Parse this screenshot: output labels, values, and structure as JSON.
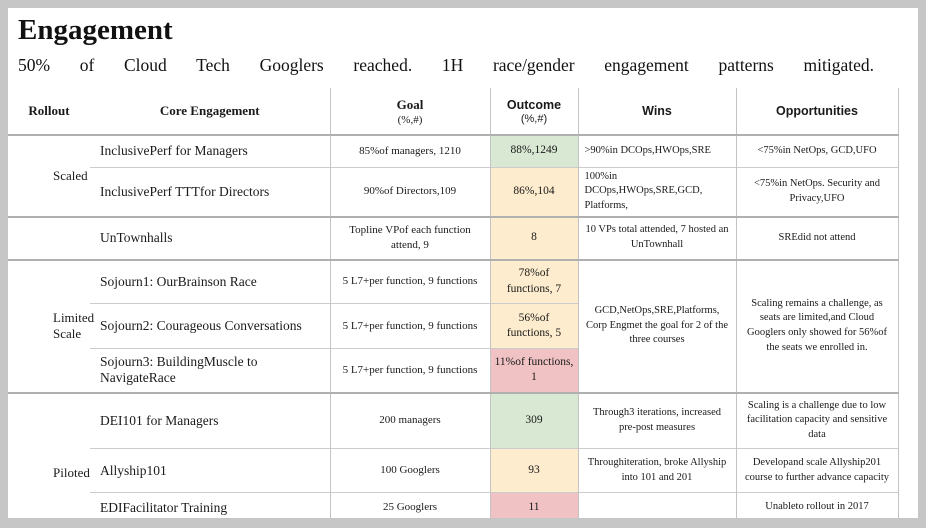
{
  "slide": {
    "title": "Engagement",
    "subtitle": "50% of Cloud Tech Googlers reached. 1H race/gender engagement patterns mitigated."
  },
  "colors": {
    "green": "#d9e8d3",
    "yellow": "#fdeccd",
    "red": "#f0c2c3",
    "grid_light": "#cccccc",
    "grid_strong": "#b0b0b0",
    "frame": "#c6c6c6"
  },
  "table": {
    "headers": {
      "rollout": "Rollout",
      "core": "Core Engagement",
      "goal": "Goal",
      "goal_sub": "(%,#)",
      "outcome": "Outcome",
      "outcome_sub": "(%,#)",
      "wins": "Wins",
      "opportunities": "Opportunities"
    },
    "rows": [
      {
        "rollout": "Scaled",
        "core": "InclusivePerf for Managers",
        "goal": "85%of managers, 1210",
        "outcome": "88%,1249",
        "status": "green",
        "wins": ">90%in DCOps,HWOps,SRE",
        "opportunities": "<75%in NetOps, GCD,UFO"
      },
      {
        "core": "InclusivePerf TTTfor Directors",
        "goal": "90%of Directors,109",
        "outcome": "86%,104",
        "status": "yellow",
        "wins": "100%in DCOps,HWOps,SRE,GCD, Platforms,",
        "opportunities": "<75%in NetOps. Security and Privacy,UFO"
      },
      {
        "rollout": "",
        "core": "UnTownhalls",
        "goal": "Topline VPof each function attend, 9",
        "outcome": "8",
        "status": "yellow",
        "wins": "10 VPs total attended, 7 hosted an UnTownhall",
        "opportunities": "SREdid not attend"
      },
      {
        "rollout": "Limited Scale",
        "core": "Sojourn1: OurBrainson Race",
        "goal": "5 L7+per function, 9 functions",
        "outcome": "78%of functions, 7",
        "status": "yellow",
        "wins": "GCD,NetOps,SRE,Platforms, Corp Engmet the goal for 2 of the three courses",
        "opportunities": "Scaling remains a challenge, as seats are limited,and Cloud Googlers only showed for 56%of the seats we enrolled in."
      },
      {
        "core": "Sojourn2: Courageous Conversations",
        "goal": "5 L7+per function, 9 functions",
        "outcome": "56%of functions, 5",
        "status": "yellow"
      },
      {
        "core": "Sojourn3: BuildingMuscle to NavigateRace",
        "goal": "5 L7+per function, 9 functions",
        "outcome": "11%of functions, 1",
        "status": "red"
      },
      {
        "rollout": "Piloted",
        "core": "DEI101 for Managers",
        "goal": "200 managers",
        "outcome": "309",
        "status": "green",
        "wins": "Through3 iterations, increased pre-post measures",
        "opportunities": "Scaling is a challenge due to low facilitation capacity and sensitive data"
      },
      {
        "core": "Allyship101",
        "goal": "100 Googlers",
        "outcome": "93",
        "status": "yellow",
        "wins": "Throughiteration, broke Allyship into 101 and 201",
        "opportunities": "Developand scale Allyship201 course to further advance capacity"
      },
      {
        "core": "EDIFacilitator Training",
        "goal": "25 Googlers",
        "outcome": "11",
        "status": "red",
        "wins": "",
        "opportunities": "Unableto rollout in 2017"
      }
    ]
  }
}
